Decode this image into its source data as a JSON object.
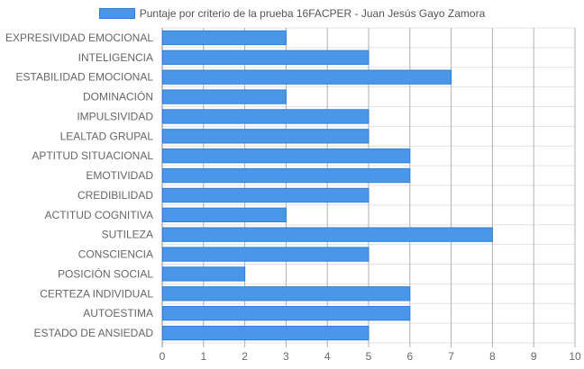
{
  "chart_data": {
    "type": "bar",
    "orientation": "horizontal",
    "series": [
      {
        "name": "Puntaje por criterio de la prueba 16FACPER - Juan Jesús Gayo Zamora",
        "color": "#4a97ea",
        "border_color": "#2f7fd8",
        "values": [
          3,
          5,
          7,
          3,
          5,
          5,
          6,
          6,
          5,
          3,
          8,
          5,
          2,
          6,
          6,
          5
        ]
      }
    ],
    "categories": [
      "EXPRESIVIDAD EMOCIONAL",
      "INTELIGENCIA",
      "ESTABILIDAD EMOCIONAL",
      "DOMINACIÓN",
      "IMPULSIVIDAD",
      "LEALTAD GRUPAL",
      "APTITUD SITUACIONAL",
      "EMOTIVIDAD",
      "CREDIBILIDAD",
      "ACTITUD COGNITIVA",
      "SUTILEZA",
      "CONSCIENCIA",
      "POSICIÓN SOCIAL",
      "CERTEZA INDIVIDUAL",
      "AUTOESTIMA",
      "ESTADO DE ANSIEDAD"
    ],
    "xlim": [
      0,
      10
    ],
    "xticks": [
      "0",
      "1",
      "2",
      "3",
      "4",
      "5",
      "6",
      "7",
      "8",
      "9",
      "10"
    ],
    "grid": true,
    "legend_position": "top"
  }
}
